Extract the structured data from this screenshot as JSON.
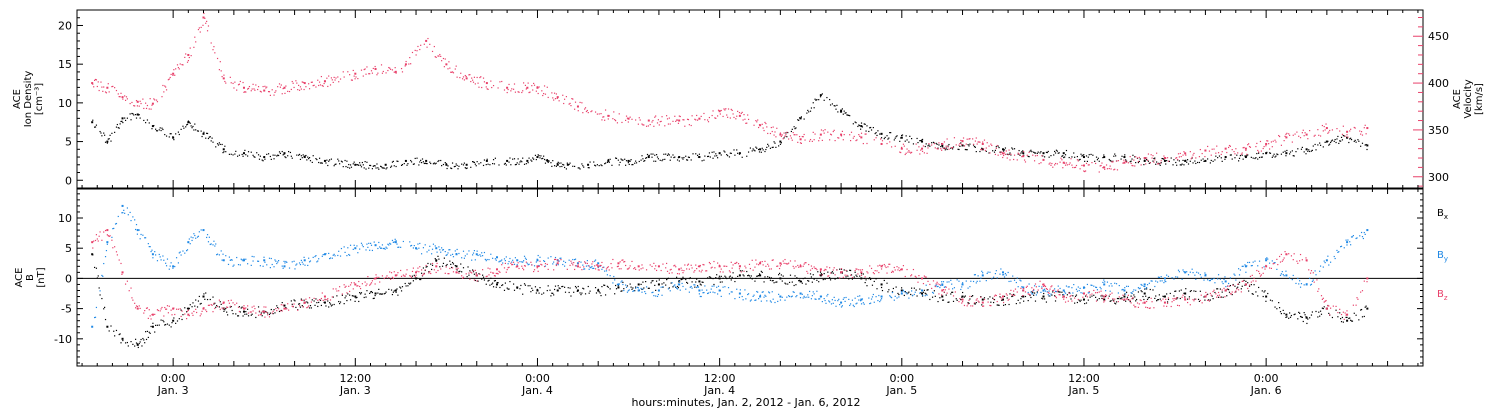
{
  "chart_data": [
    {
      "panel": "top",
      "type": "scatter",
      "left_axis": {
        "title_lines": [
          "ACE",
          "Ion Density"
        ],
        "unit": "[cm⁻³]",
        "range": [
          -1,
          22
        ],
        "ticks": [
          0,
          5,
          10,
          15,
          20
        ]
      },
      "right_axis": {
        "title_lines": [
          "ACE",
          "Velocity"
        ],
        "unit": "[km/s]",
        "range": [
          288,
          478
        ],
        "ticks": [
          300,
          350,
          400,
          450
        ]
      },
      "series": [
        {
          "id": "density",
          "color": "#000000",
          "axis": "left",
          "x": [
            -16,
            -13,
            -10,
            -7,
            -4,
            0,
            3,
            6,
            10,
            14,
            18,
            22,
            26,
            30,
            36,
            42,
            46,
            50,
            54,
            58,
            62,
            66,
            70,
            72,
            74,
            76,
            78,
            82,
            86,
            90,
            94,
            100,
            104,
            108,
            112,
            116,
            120,
            124,
            128,
            132,
            136,
            140,
            144,
            148,
            152,
            156,
            160,
            164,
            168,
            172,
            176,
            180,
            184,
            188,
            192,
            196,
            200,
            204,
            208,
            212,
            216,
            220,
            224,
            228,
            232,
            236
          ],
          "y": [
            7.5,
            5,
            8,
            8.5,
            7,
            5.5,
            7.5,
            6,
            4,
            3.5,
            3,
            3.5,
            3,
            2.5,
            2,
            2,
            2.5,
            2.5,
            2,
            2,
            2.5,
            2.5,
            2.5,
            3,
            2.5,
            2,
            2,
            2,
            2.5,
            2.5,
            3,
            3,
            3,
            3.5,
            3.5,
            4,
            5,
            8,
            11,
            9,
            7,
            6,
            5.5,
            5,
            4.5,
            4.5,
            4,
            4,
            3.5,
            3.5,
            3.5,
            3,
            3,
            3,
            2.5,
            2.5,
            2.5,
            2.5,
            3,
            3,
            3.5,
            3.5,
            4,
            5,
            5.5,
            4.5
          ]
        },
        {
          "id": "velocity",
          "color": "#e8406a",
          "axis": "right",
          "x": [
            -16,
            -13,
            -10,
            -7,
            -4,
            0,
            3,
            6,
            10,
            14,
            18,
            22,
            26,
            30,
            36,
            40,
            44,
            46,
            50,
            54,
            58,
            62,
            66,
            70,
            72,
            76,
            80,
            86,
            90,
            94,
            100,
            104,
            108,
            112,
            116,
            120,
            124,
            128,
            132,
            136,
            140,
            144,
            148,
            152,
            156,
            160,
            164,
            168,
            172,
            176,
            180,
            184,
            188,
            192,
            196,
            200,
            204,
            208,
            212,
            216,
            220,
            224,
            228,
            232,
            236
          ],
          "y": [
            400,
            395,
            385,
            380,
            378,
            410,
            430,
            470,
            405,
            395,
            392,
            395,
            400,
            402,
            410,
            415,
            412,
            420,
            445,
            420,
            405,
            400,
            395,
            395,
            395,
            385,
            375,
            365,
            362,
            360,
            360,
            362,
            370,
            365,
            355,
            345,
            340,
            345,
            345,
            342,
            335,
            330,
            330,
            335,
            338,
            335,
            325,
            322,
            318,
            315,
            312,
            310,
            315,
            320,
            320,
            325,
            328,
            330,
            330,
            335,
            342,
            345,
            352,
            348,
            352
          ]
        }
      ]
    },
    {
      "panel": "bottom",
      "type": "scatter",
      "left_axis": {
        "title_lines": [
          "ACE",
          "B"
        ],
        "unit": "[nT]",
        "range": [
          -14.5,
          14.8
        ],
        "ticks": [
          -10,
          -5,
          0,
          5,
          10
        ]
      },
      "zero_line": true,
      "series": [
        {
          "id": "bx",
          "label": "B",
          "sub": "x",
          "color": "#000000",
          "x": [
            -16,
            -13,
            -10,
            -7,
            -4,
            0,
            3,
            6,
            10,
            14,
            18,
            22,
            26,
            30,
            36,
            40,
            44,
            48,
            52,
            56,
            60,
            64,
            68,
            72,
            76,
            80,
            84,
            88,
            92,
            96,
            100,
            104,
            108,
            112,
            116,
            120,
            124,
            128,
            132,
            136,
            140,
            144,
            148,
            152,
            156,
            160,
            164,
            168,
            172,
            176,
            180,
            184,
            188,
            192,
            196,
            200,
            204,
            208,
            212,
            216,
            220,
            224,
            228,
            232,
            236
          ],
          "y": [
            4,
            -8,
            -10,
            -11,
            -8,
            -7,
            -5,
            -3,
            -5,
            -5.5,
            -5.5,
            -4.5,
            -4,
            -4,
            -3,
            -2.5,
            -2,
            0,
            3,
            2,
            0.5,
            -1,
            -1.5,
            -2,
            -2,
            -2,
            -2,
            -1.5,
            -1,
            -1,
            -0.5,
            -0.5,
            0,
            0.5,
            0.5,
            0,
            -0.5,
            0.5,
            1,
            0,
            -1,
            -2,
            -2.5,
            -3,
            -3,
            -3.5,
            -3.5,
            -3,
            -3,
            -3,
            -3.5,
            -3.5,
            -3,
            -2.5,
            -3,
            -2.5,
            -3,
            -2,
            -1,
            -3,
            -6,
            -6.5,
            -5,
            -7,
            -5
          ]
        },
        {
          "id": "by",
          "label": "B",
          "sub": "y",
          "color": "#1e88e5",
          "x": [
            -16,
            -13,
            -10,
            -7,
            -4,
            0,
            3,
            6,
            10,
            14,
            18,
            22,
            26,
            30,
            36,
            40,
            44,
            48,
            52,
            56,
            60,
            64,
            68,
            72,
            76,
            80,
            84,
            88,
            92,
            96,
            100,
            104,
            108,
            112,
            116,
            120,
            124,
            128,
            132,
            136,
            140,
            144,
            148,
            152,
            156,
            160,
            164,
            168,
            172,
            176,
            180,
            184,
            188,
            192,
            196,
            200,
            204,
            208,
            212,
            216,
            220,
            224,
            228,
            232,
            236
          ],
          "y": [
            -8,
            6,
            12,
            8,
            4,
            2,
            6,
            8,
            3,
            3,
            3,
            2,
            3,
            4,
            5,
            5.5,
            6,
            5,
            5,
            4,
            4,
            3.5,
            3,
            3,
            3,
            2.5,
            2.5,
            -1,
            -2,
            -2,
            -1,
            -2,
            -2,
            -2.5,
            -3,
            -3,
            -2.5,
            -3,
            -4,
            -3.5,
            -3,
            -2.5,
            -2,
            -1,
            -1,
            0.5,
            1,
            -1.5,
            -2,
            -2,
            -1.5,
            -1,
            -2,
            -1,
            0,
            1,
            0.5,
            -0.5,
            2,
            3,
            0.5,
            -1,
            3,
            6,
            8
          ]
        },
        {
          "id": "bz",
          "label": "B",
          "sub": "z",
          "color": "#e8406a",
          "x": [
            -16,
            -13,
            -10,
            -7,
            -4,
            0,
            3,
            6,
            10,
            14,
            18,
            22,
            26,
            30,
            36,
            40,
            44,
            48,
            52,
            56,
            60,
            64,
            68,
            72,
            76,
            80,
            84,
            88,
            92,
            96,
            100,
            104,
            108,
            112,
            116,
            120,
            124,
            128,
            132,
            136,
            140,
            144,
            148,
            152,
            156,
            160,
            164,
            168,
            172,
            176,
            180,
            184,
            188,
            192,
            196,
            200,
            204,
            208,
            212,
            216,
            220,
            224,
            228,
            232,
            236
          ],
          "y": [
            6,
            8,
            1,
            -5,
            -6,
            -5,
            -6,
            -5,
            -4,
            -5,
            -5.5,
            -5,
            -4,
            -3,
            -1,
            0,
            0.5,
            1,
            2,
            1,
            0.5,
            1.5,
            2,
            2,
            2.5,
            2,
            2,
            2.5,
            2,
            2,
            1.5,
            2,
            2,
            2,
            2.5,
            2.5,
            2,
            1.5,
            1,
            1,
            2,
            1.5,
            0,
            -2,
            -3.5,
            -4,
            -3,
            -2,
            -1,
            -3,
            -2.5,
            -3,
            -3.5,
            -4,
            -4,
            -3.5,
            -3,
            -2,
            -1,
            2,
            4,
            3,
            -5,
            -6,
            0
          ]
        }
      ]
    }
  ],
  "x_axis": {
    "range": [
      -19,
      247
    ],
    "major_ticks": [
      {
        "x": 0,
        "time": "0:00",
        "date": "Jan. 3"
      },
      {
        "x": 36,
        "time": "12:00",
        "date": "Jan. 3"
      },
      {
        "x": 72,
        "time": "0:00",
        "date": "Jan. 4"
      },
      {
        "x": 108,
        "time": "12:00",
        "date": "Jan. 4"
      },
      {
        "x": 144,
        "time": "0:00",
        "date": "Jan. 5"
      },
      {
        "x": 180,
        "time": "12:00",
        "date": "Jan. 5"
      },
      {
        "x": 216,
        "time": "0:00",
        "date": "Jan. 6"
      }
    ],
    "title": "hours:minutes, Jan.  2, 2012 - Jan.  6, 2012"
  }
}
